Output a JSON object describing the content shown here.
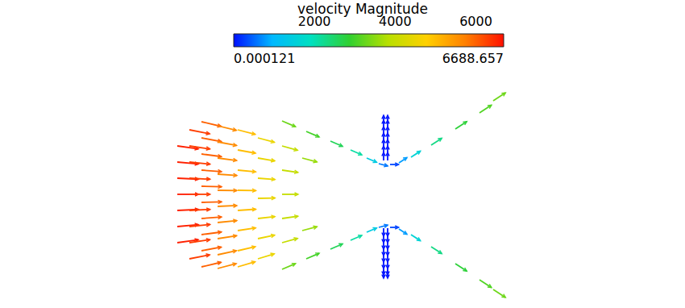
{
  "chart_data": {
    "type": "vector",
    "tick_labels": false,
    "vectors": [
      [
        20,
        60,
        6490,
        -910
      ],
      [
        20,
        40,
        6520,
        -610
      ],
      [
        20,
        20,
        6540,
        -305
      ],
      [
        20,
        0,
        6600,
        0
      ],
      [
        20,
        -20,
        6540,
        305
      ],
      [
        20,
        -40,
        6520,
        610
      ],
      [
        20,
        -60,
        6490,
        910
      ],
      [
        35,
        80,
        6180,
        -1220
      ],
      [
        35,
        60,
        6230,
        -920
      ],
      [
        35,
        40,
        6270,
        -620
      ],
      [
        35,
        20,
        6290,
        -310
      ],
      [
        35,
        0,
        6300,
        0
      ],
      [
        35,
        -20,
        6290,
        310
      ],
      [
        35,
        -40,
        6270,
        620
      ],
      [
        35,
        -60,
        6230,
        920
      ],
      [
        35,
        -80,
        6180,
        1220
      ],
      [
        50,
        90,
        5840,
        -1380
      ],
      [
        50,
        70,
        5900,
        -1090
      ],
      [
        50,
        50,
        5950,
        -780
      ],
      [
        50,
        30,
        5980,
        -470
      ],
      [
        50,
        10,
        6000,
        -160
      ],
      [
        50,
        -10,
        6000,
        160
      ],
      [
        50,
        -30,
        5980,
        470
      ],
      [
        50,
        -50,
        5950,
        780
      ],
      [
        50,
        -70,
        5900,
        1090
      ],
      [
        50,
        -90,
        5840,
        1380
      ],
      [
        70,
        85,
        5440,
        -1330
      ],
      [
        70,
        65,
        5500,
        -1030
      ],
      [
        70,
        45,
        5550,
        -720
      ],
      [
        70,
        25,
        5590,
        -400
      ],
      [
        70,
        5,
        5600,
        -80
      ],
      [
        70,
        -15,
        5590,
        240
      ],
      [
        70,
        -35,
        5570,
        560
      ],
      [
        70,
        -55,
        5530,
        870
      ],
      [
        70,
        -75,
        5470,
        1180
      ],
      [
        70,
        -92,
        5410,
        1430
      ],
      [
        95,
        80,
        4840,
        -1270
      ],
      [
        95,
        55,
        4920,
        -890
      ],
      [
        95,
        30,
        4980,
        -490
      ],
      [
        95,
        5,
        5000,
        -80
      ],
      [
        95,
        -20,
        4990,
        330
      ],
      [
        95,
        -45,
        4950,
        730
      ],
      [
        95,
        -70,
        4870,
        1120
      ],
      [
        95,
        -90,
        4800,
        1420
      ],
      [
        120,
        70,
        4350,
        -1160
      ],
      [
        120,
        45,
        4430,
        -760
      ],
      [
        120,
        20,
        4490,
        -340
      ],
      [
        120,
        -5,
        4500,
        90
      ],
      [
        120,
        -30,
        4470,
        510
      ],
      [
        120,
        -55,
        4400,
        920
      ],
      [
        120,
        -80,
        4310,
        1310
      ],
      [
        150,
        60,
        3850,
        -1080
      ],
      [
        150,
        30,
        3960,
        -560
      ],
      [
        150,
        0,
        4000,
        0
      ],
      [
        150,
        -30,
        3960,
        560
      ],
      [
        150,
        -60,
        3850,
        1080
      ],
      [
        175,
        45,
        3480,
        -910
      ],
      [
        175,
        -45,
        3480,
        910
      ],
      [
        150,
        91,
        3030,
        -1300
      ],
      [
        180,
        78,
        2760,
        -1190
      ],
      [
        210,
        66,
        2390,
        -1030
      ],
      [
        235,
        55,
        1930,
        -830
      ],
      [
        255,
        45,
        1290,
        -550
      ],
      [
        270,
        38,
        580,
        -150
      ],
      [
        284,
        37,
        300,
        0
      ],
      [
        295,
        39,
        670,
        440
      ],
      [
        310,
        46,
        1340,
        870
      ],
      [
        335,
        61,
        1930,
        1250
      ],
      [
        365,
        81,
        2350,
        1530
      ],
      [
        395,
        101,
        2600,
        1690
      ],
      [
        412,
        116,
        2770,
        1800
      ],
      [
        150,
        -93,
        3030,
        1300
      ],
      [
        180,
        -80,
        2760,
        1190
      ],
      [
        210,
        -68,
        2390,
        1030
      ],
      [
        235,
        -57,
        1930,
        830
      ],
      [
        255,
        -47,
        1290,
        550
      ],
      [
        270,
        -41,
        580,
        150
      ],
      [
        284,
        -41,
        300,
        0
      ],
      [
        295,
        -43,
        670,
        -440
      ],
      [
        310,
        -50,
        1340,
        -870
      ],
      [
        335,
        -65,
        1930,
        -1250
      ],
      [
        365,
        -86,
        2350,
        -1530
      ],
      [
        395,
        -106,
        2600,
        -1690
      ],
      [
        412,
        -118,
        2770,
        -1800
      ],
      [
        276,
        42,
        0,
        25
      ],
      [
        276,
        50,
        0,
        25
      ],
      [
        276,
        58,
        0,
        25
      ],
      [
        276,
        66,
        0,
        25
      ],
      [
        276,
        74,
        0,
        25
      ],
      [
        276,
        82,
        0,
        25
      ],
      [
        276,
        88,
        0,
        25
      ],
      [
        281,
        42,
        0,
        25
      ],
      [
        281,
        50,
        0,
        25
      ],
      [
        281,
        58,
        0,
        25
      ],
      [
        281,
        66,
        0,
        25
      ],
      [
        281,
        74,
        0,
        25
      ],
      [
        281,
        82,
        0,
        25
      ],
      [
        281,
        88,
        0,
        25
      ],
      [
        276,
        -42,
        0,
        -25
      ],
      [
        276,
        -50,
        0,
        -25
      ],
      [
        276,
        -58,
        0,
        -25
      ],
      [
        276,
        -66,
        0,
        -25
      ],
      [
        276,
        -74,
        0,
        -25
      ],
      [
        276,
        -82,
        0,
        -25
      ],
      [
        276,
        -90,
        0,
        -25
      ],
      [
        276,
        -94,
        0,
        -25
      ],
      [
        281,
        -42,
        0,
        -25
      ],
      [
        281,
        -50,
        0,
        -25
      ],
      [
        281,
        -58,
        0,
        -25
      ],
      [
        281,
        -66,
        0,
        -25
      ],
      [
        281,
        -74,
        0,
        -25
      ],
      [
        281,
        -82,
        0,
        -25
      ],
      [
        281,
        -90,
        0,
        -25
      ],
      [
        281,
        -94,
        0,
        -25
      ]
    ],
    "colorbar": {
      "label": "velocity Magnitude",
      "range": [
        0.000121,
        6688.657
      ],
      "ticks": [
        2000,
        4000,
        6000
      ]
    }
  }
}
